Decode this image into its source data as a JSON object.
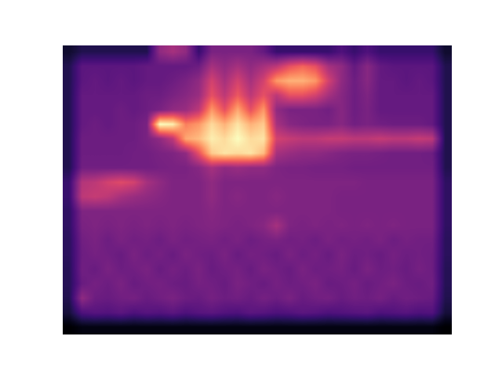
{
  "chart_data": {
    "type": "heatmap",
    "color": "magma",
    "tick_labels": false,
    "cells": [
      [
        0.1,
        0.15,
        0.15,
        0.15,
        0.15,
        0.15,
        0.15,
        0.4,
        0.45,
        0.4,
        0.2,
        0.35,
        0.35,
        0.35,
        0.35,
        0.3,
        0.2,
        0.2,
        0.2,
        0.2,
        0.2,
        0.25,
        0.2,
        0.25,
        0.2,
        0.2,
        0.2,
        0.2,
        0.2,
        0.1
      ],
      [
        0.15,
        0.28,
        0.28,
        0.28,
        0.28,
        0.28,
        0.3,
        0.3,
        0.3,
        0.3,
        0.32,
        0.45,
        0.4,
        0.45,
        0.4,
        0.45,
        0.5,
        0.6,
        0.65,
        0.6,
        0.45,
        0.4,
        0.3,
        0.38,
        0.3,
        0.28,
        0.28,
        0.28,
        0.28,
        0.15
      ],
      [
        0.15,
        0.28,
        0.3,
        0.28,
        0.3,
        0.28,
        0.3,
        0.3,
        0.32,
        0.35,
        0.4,
        0.55,
        0.45,
        0.55,
        0.45,
        0.55,
        0.75,
        0.8,
        0.8,
        0.75,
        0.55,
        0.4,
        0.32,
        0.38,
        0.3,
        0.3,
        0.28,
        0.3,
        0.28,
        0.15
      ],
      [
        0.15,
        0.3,
        0.3,
        0.3,
        0.3,
        0.3,
        0.32,
        0.32,
        0.35,
        0.38,
        0.42,
        0.6,
        0.5,
        0.62,
        0.5,
        0.6,
        0.5,
        0.6,
        0.6,
        0.55,
        0.45,
        0.38,
        0.32,
        0.36,
        0.3,
        0.3,
        0.3,
        0.3,
        0.3,
        0.15
      ],
      [
        0.15,
        0.3,
        0.3,
        0.3,
        0.32,
        0.3,
        0.32,
        0.35,
        0.4,
        0.42,
        0.5,
        0.75,
        0.6,
        0.78,
        0.6,
        0.75,
        0.4,
        0.35,
        0.35,
        0.35,
        0.33,
        0.38,
        0.32,
        0.35,
        0.3,
        0.3,
        0.3,
        0.3,
        0.3,
        0.15
      ],
      [
        0.15,
        0.3,
        0.32,
        0.3,
        0.32,
        0.32,
        0.35,
        0.95,
        0.92,
        0.7,
        0.75,
        0.88,
        0.8,
        0.9,
        0.8,
        0.85,
        0.45,
        0.38,
        0.36,
        0.35,
        0.35,
        0.38,
        0.33,
        0.35,
        0.33,
        0.32,
        0.32,
        0.32,
        0.3,
        0.15
      ],
      [
        0.15,
        0.32,
        0.32,
        0.32,
        0.32,
        0.32,
        0.35,
        0.4,
        0.5,
        0.78,
        0.82,
        0.92,
        0.88,
        0.95,
        0.88,
        0.9,
        0.55,
        0.52,
        0.5,
        0.5,
        0.52,
        0.52,
        0.5,
        0.5,
        0.52,
        0.5,
        0.5,
        0.52,
        0.5,
        0.15
      ],
      [
        0.15,
        0.32,
        0.32,
        0.32,
        0.32,
        0.33,
        0.33,
        0.35,
        0.36,
        0.4,
        0.6,
        0.85,
        0.9,
        0.88,
        0.9,
        0.82,
        0.45,
        0.42,
        0.4,
        0.4,
        0.38,
        0.36,
        0.35,
        0.35,
        0.34,
        0.33,
        0.33,
        0.33,
        0.32,
        0.15
      ],
      [
        0.15,
        0.33,
        0.33,
        0.33,
        0.33,
        0.33,
        0.33,
        0.34,
        0.35,
        0.35,
        0.38,
        0.45,
        0.4,
        0.42,
        0.4,
        0.4,
        0.36,
        0.35,
        0.35,
        0.34,
        0.34,
        0.34,
        0.33,
        0.33,
        0.33,
        0.33,
        0.33,
        0.33,
        0.33,
        0.15
      ],
      [
        0.2,
        0.48,
        0.5,
        0.55,
        0.58,
        0.55,
        0.45,
        0.4,
        0.36,
        0.36,
        0.36,
        0.4,
        0.36,
        0.36,
        0.36,
        0.36,
        0.36,
        0.36,
        0.36,
        0.36,
        0.36,
        0.36,
        0.36,
        0.35,
        0.35,
        0.35,
        0.35,
        0.35,
        0.35,
        0.18
      ],
      [
        0.2,
        0.5,
        0.52,
        0.5,
        0.45,
        0.42,
        0.4,
        0.38,
        0.36,
        0.36,
        0.36,
        0.4,
        0.36,
        0.38,
        0.36,
        0.36,
        0.38,
        0.36,
        0.36,
        0.36,
        0.36,
        0.35,
        0.35,
        0.35,
        0.35,
        0.35,
        0.35,
        0.35,
        0.35,
        0.18
      ],
      [
        0.18,
        0.36,
        0.36,
        0.36,
        0.36,
        0.36,
        0.36,
        0.36,
        0.36,
        0.36,
        0.36,
        0.38,
        0.36,
        0.36,
        0.36,
        0.36,
        0.36,
        0.36,
        0.36,
        0.36,
        0.36,
        0.35,
        0.35,
        0.35,
        0.35,
        0.35,
        0.35,
        0.35,
        0.35,
        0.18
      ],
      [
        0.18,
        0.35,
        0.36,
        0.35,
        0.36,
        0.35,
        0.36,
        0.35,
        0.36,
        0.35,
        0.36,
        0.37,
        0.36,
        0.35,
        0.36,
        0.38,
        0.45,
        0.36,
        0.35,
        0.36,
        0.35,
        0.36,
        0.35,
        0.36,
        0.35,
        0.36,
        0.35,
        0.35,
        0.35,
        0.18
      ],
      [
        0.17,
        0.33,
        0.35,
        0.32,
        0.35,
        0.33,
        0.34,
        0.32,
        0.35,
        0.33,
        0.34,
        0.35,
        0.33,
        0.35,
        0.32,
        0.34,
        0.35,
        0.33,
        0.34,
        0.32,
        0.35,
        0.33,
        0.34,
        0.33,
        0.35,
        0.32,
        0.34,
        0.33,
        0.33,
        0.17
      ],
      [
        0.17,
        0.32,
        0.34,
        0.33,
        0.31,
        0.35,
        0.32,
        0.34,
        0.31,
        0.35,
        0.33,
        0.32,
        0.35,
        0.31,
        0.34,
        0.33,
        0.31,
        0.35,
        0.32,
        0.34,
        0.31,
        0.35,
        0.32,
        0.33,
        0.31,
        0.34,
        0.32,
        0.33,
        0.32,
        0.17
      ],
      [
        0.16,
        0.33,
        0.31,
        0.35,
        0.32,
        0.33,
        0.35,
        0.31,
        0.34,
        0.32,
        0.35,
        0.31,
        0.33,
        0.34,
        0.31,
        0.35,
        0.33,
        0.31,
        0.35,
        0.32,
        0.33,
        0.34,
        0.31,
        0.35,
        0.32,
        0.33,
        0.31,
        0.34,
        0.32,
        0.16
      ],
      [
        0.16,
        0.31,
        0.34,
        0.32,
        0.35,
        0.31,
        0.33,
        0.34,
        0.32,
        0.31,
        0.34,
        0.33,
        0.31,
        0.35,
        0.33,
        0.31,
        0.34,
        0.32,
        0.33,
        0.35,
        0.31,
        0.32,
        0.34,
        0.31,
        0.33,
        0.35,
        0.32,
        0.31,
        0.33,
        0.16
      ],
      [
        0.15,
        0.4,
        0.32,
        0.31,
        0.33,
        0.34,
        0.31,
        0.33,
        0.35,
        0.32,
        0.31,
        0.34,
        0.32,
        0.33,
        0.31,
        0.34,
        0.32,
        0.35,
        0.31,
        0.33,
        0.34,
        0.31,
        0.33,
        0.32,
        0.34,
        0.31,
        0.33,
        0.32,
        0.31,
        0.15
      ],
      [
        0.12,
        0.25,
        0.27,
        0.26,
        0.28,
        0.25,
        0.27,
        0.26,
        0.28,
        0.25,
        0.27,
        0.28,
        0.26,
        0.25,
        0.28,
        0.27,
        0.25,
        0.26,
        0.28,
        0.27,
        0.25,
        0.26,
        0.27,
        0.28,
        0.25,
        0.26,
        0.27,
        0.25,
        0.26,
        0.12
      ],
      [
        0.02,
        0.05,
        0.05,
        0.05,
        0.05,
        0.05,
        0.05,
        0.05,
        0.05,
        0.05,
        0.05,
        0.05,
        0.05,
        0.05,
        0.05,
        0.05,
        0.05,
        0.05,
        0.05,
        0.05,
        0.05,
        0.05,
        0.05,
        0.05,
        0.05,
        0.05,
        0.05,
        0.05,
        0.05,
        0.02
      ]
    ]
  }
}
